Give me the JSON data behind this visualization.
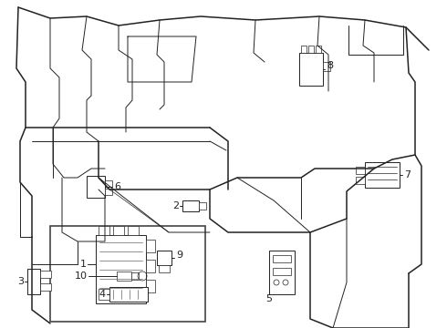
{
  "bg_color": "#ffffff",
  "line_color": "#222222",
  "label_color": "#111111",
  "figsize": [
    4.9,
    3.6
  ],
  "dpi": 100,
  "lw_main": 1.1,
  "lw_detail": 0.7,
  "lw_thin": 0.5
}
